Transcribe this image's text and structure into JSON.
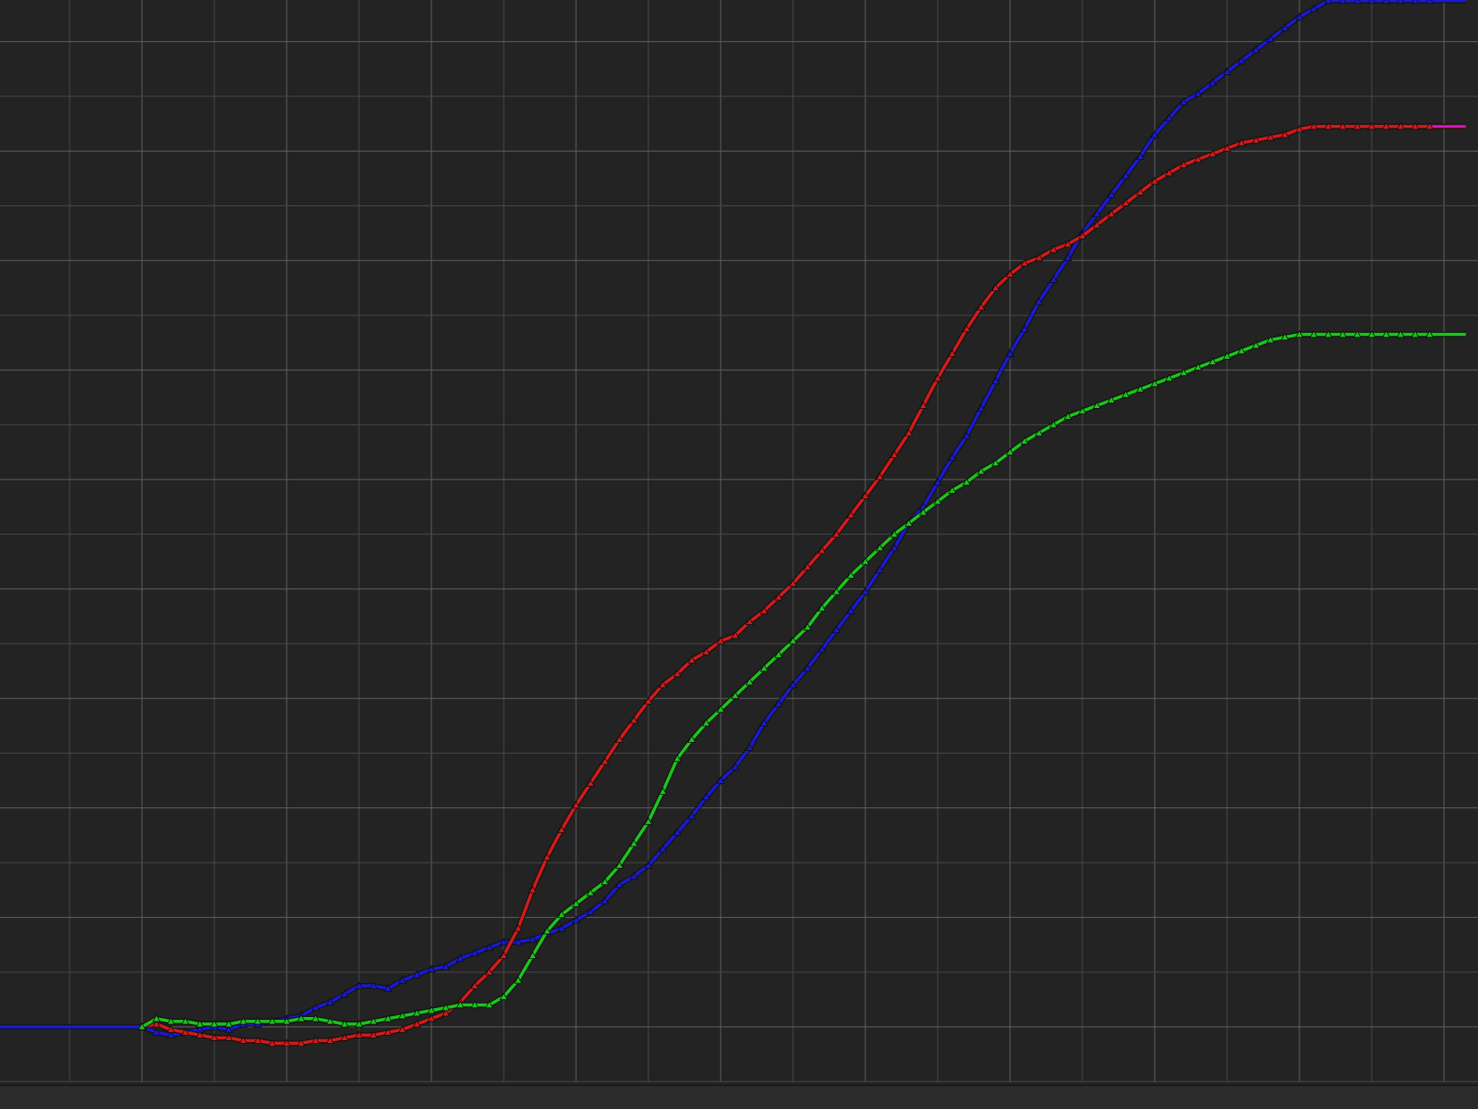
{
  "chart_data": {
    "type": "line",
    "title": "",
    "xlabel": "",
    "ylabel": "",
    "xlim": [
      -2,
      18.3
    ],
    "ylim": [
      -1,
      19
    ],
    "grid": true,
    "major_every": 2,
    "series": [
      {
        "color": "#1a1ad2",
        "marker": "triangle",
        "x": [
          -2,
          0,
          0.2,
          0.4,
          0.6,
          0.8,
          1,
          1.2,
          1.4,
          1.6,
          1.8,
          2,
          2.2,
          2.4,
          2.6,
          2.8,
          3,
          3.2,
          3.4,
          3.6,
          3.8,
          4,
          4.2,
          4.4,
          4.6,
          4.8,
          5,
          5.2,
          5.4,
          5.6,
          5.8,
          6,
          6.2,
          6.4,
          6.6,
          6.8,
          7,
          7.2,
          7.4,
          7.6,
          7.8,
          8,
          8.2,
          8.4,
          8.6,
          8.8,
          9,
          9.2,
          9.4,
          9.6,
          9.8,
          10,
          10.2,
          10.4,
          10.6,
          10.8,
          11,
          11.2,
          11.4,
          11.6,
          11.8,
          12,
          12.2,
          12.4,
          12.6,
          12.8,
          13,
          13.2,
          13.4,
          13.6,
          13.8,
          14,
          14.2,
          14.4,
          14.6,
          14.8,
          15,
          15.2,
          15.4,
          15.6,
          15.8,
          16,
          16.2,
          16.4,
          16.6,
          16.8,
          17,
          17.2,
          17.4,
          17.6,
          17.8,
          18.3
        ],
        "y": [
          0,
          0,
          -0.1,
          -0.15,
          -0.1,
          -0.05,
          0.0,
          -0.05,
          0.05,
          0.05,
          0.1,
          0.15,
          0.2,
          0.35,
          0.45,
          0.6,
          0.75,
          0.75,
          0.7,
          0.85,
          0.95,
          1.05,
          1.1,
          1.25,
          1.35,
          1.45,
          1.55,
          1.55,
          1.6,
          1.7,
          1.8,
          1.95,
          2.1,
          2.3,
          2.6,
          2.75,
          2.95,
          3.25,
          3.55,
          3.85,
          4.2,
          4.5,
          4.75,
          5.1,
          5.55,
          5.9,
          6.25,
          6.55,
          6.9,
          7.25,
          7.6,
          7.95,
          8.35,
          8.75,
          9.2,
          9.5,
          9.95,
          10.4,
          10.8,
          11.3,
          11.8,
          12.3,
          12.75,
          13.25,
          13.65,
          14.05,
          14.5,
          14.85,
          15.2,
          15.55,
          15.9,
          16.3,
          16.6,
          16.9,
          17.05,
          17.25,
          17.45,
          17.65,
          17.85,
          18.05,
          18.25,
          18.45,
          18.6,
          18.75,
          18.75,
          18.75,
          18.75,
          18.75,
          18.75,
          18.75,
          18.75,
          18.75
        ]
      },
      {
        "color": "#d41a1a",
        "marker": "triangle",
        "x": [
          0,
          0.2,
          0.4,
          0.6,
          0.8,
          1,
          1.2,
          1.4,
          1.6,
          1.8,
          2,
          2.2,
          2.4,
          2.6,
          2.8,
          3,
          3.2,
          3.4,
          3.6,
          3.8,
          4,
          4.2,
          4.4,
          4.6,
          4.8,
          5,
          5.2,
          5.4,
          5.6,
          5.8,
          6,
          6.2,
          6.4,
          6.6,
          6.8,
          7,
          7.2,
          7.4,
          7.6,
          7.8,
          8,
          8.2,
          8.4,
          8.6,
          8.8,
          9,
          9.2,
          9.4,
          9.6,
          9.8,
          10,
          10.2,
          10.4,
          10.6,
          10.8,
          11,
          11.2,
          11.4,
          11.6,
          11.8,
          12,
          12.2,
          12.4,
          12.6,
          12.8,
          13,
          13.2,
          13.4,
          13.6,
          13.8,
          14,
          14.2,
          14.4,
          14.6,
          14.8,
          15,
          15.2,
          15.4,
          15.6,
          15.8,
          16,
          16.2,
          16.4,
          16.6,
          16.8,
          17,
          17.2,
          17.4,
          17.6,
          17.8,
          18.3
        ],
        "y": [
          0,
          0.05,
          -0.05,
          -0.1,
          -0.15,
          -0.2,
          -0.2,
          -0.25,
          -0.25,
          -0.3,
          -0.3,
          -0.3,
          -0.25,
          -0.25,
          -0.2,
          -0.15,
          -0.15,
          -0.1,
          -0.05,
          0.05,
          0.15,
          0.25,
          0.45,
          0.75,
          1.0,
          1.3,
          1.8,
          2.5,
          3.1,
          3.6,
          4.05,
          4.45,
          4.85,
          5.25,
          5.6,
          5.95,
          6.25,
          6.45,
          6.7,
          6.85,
          7.05,
          7.15,
          7.4,
          7.6,
          7.85,
          8.1,
          8.4,
          8.7,
          9.0,
          9.35,
          9.7,
          10.05,
          10.45,
          10.85,
          11.35,
          11.85,
          12.3,
          12.75,
          13.15,
          13.5,
          13.75,
          13.95,
          14.05,
          14.2,
          14.3,
          14.45,
          14.65,
          14.85,
          15.05,
          15.25,
          15.45,
          15.6,
          15.75,
          15.85,
          15.95,
          16.05,
          16.15,
          16.2,
          16.25,
          16.3,
          16.4,
          16.45,
          16.45,
          16.45,
          16.45,
          16.45,
          16.45,
          16.45,
          16.45,
          16.45,
          16.45
        ]
      },
      {
        "color": "#1cc51c",
        "marker": "triangle",
        "x": [
          0,
          0.2,
          0.4,
          0.6,
          0.8,
          1,
          1.2,
          1.4,
          1.6,
          1.8,
          2,
          2.2,
          2.4,
          2.6,
          2.8,
          3,
          3.2,
          3.4,
          3.6,
          3.8,
          4,
          4.2,
          4.4,
          4.6,
          4.8,
          5,
          5.2,
          5.4,
          5.6,
          5.8,
          6,
          6.2,
          6.4,
          6.6,
          6.8,
          7,
          7.2,
          7.4,
          7.6,
          7.8,
          8,
          8.2,
          8.4,
          8.6,
          8.8,
          9,
          9.2,
          9.4,
          9.6,
          9.8,
          10,
          10.2,
          10.4,
          10.6,
          10.8,
          11,
          11.2,
          11.4,
          11.6,
          11.8,
          12,
          12.2,
          12.4,
          12.6,
          12.8,
          13,
          13.2,
          13.4,
          13.6,
          13.8,
          14,
          14.2,
          14.4,
          14.6,
          14.8,
          15,
          15.2,
          15.4,
          15.6,
          15.8,
          16,
          16.2,
          16.4,
          16.6,
          16.8,
          17,
          17.2,
          17.4,
          17.6,
          17.8,
          18.3
        ],
        "y": [
          0,
          0.15,
          0.1,
          0.1,
          0.05,
          0.05,
          0.05,
          0.1,
          0.1,
          0.1,
          0.1,
          0.15,
          0.15,
          0.1,
          0.05,
          0.05,
          0.1,
          0.15,
          0.2,
          0.25,
          0.3,
          0.35,
          0.4,
          0.4,
          0.4,
          0.55,
          0.85,
          1.3,
          1.75,
          2.05,
          2.25,
          2.45,
          2.65,
          2.95,
          3.35,
          3.75,
          4.3,
          4.9,
          5.25,
          5.55,
          5.8,
          6.05,
          6.3,
          6.55,
          6.8,
          7.05,
          7.3,
          7.65,
          7.95,
          8.25,
          8.5,
          8.75,
          9.0,
          9.2,
          9.4,
          9.6,
          9.8,
          9.95,
          10.15,
          10.3,
          10.5,
          10.7,
          10.85,
          11.0,
          11.15,
          11.25,
          11.35,
          11.45,
          11.55,
          11.65,
          11.75,
          11.85,
          11.95,
          12.05,
          12.15,
          12.25,
          12.35,
          12.45,
          12.55,
          12.6,
          12.65,
          12.65,
          12.65,
          12.65,
          12.65,
          12.65,
          12.65,
          12.65,
          12.65,
          12.65,
          12.65
        ]
      }
    ],
    "tail_colors": [
      "#1a1ad2",
      "#d21ad2",
      "#1cc51c"
    ]
  }
}
